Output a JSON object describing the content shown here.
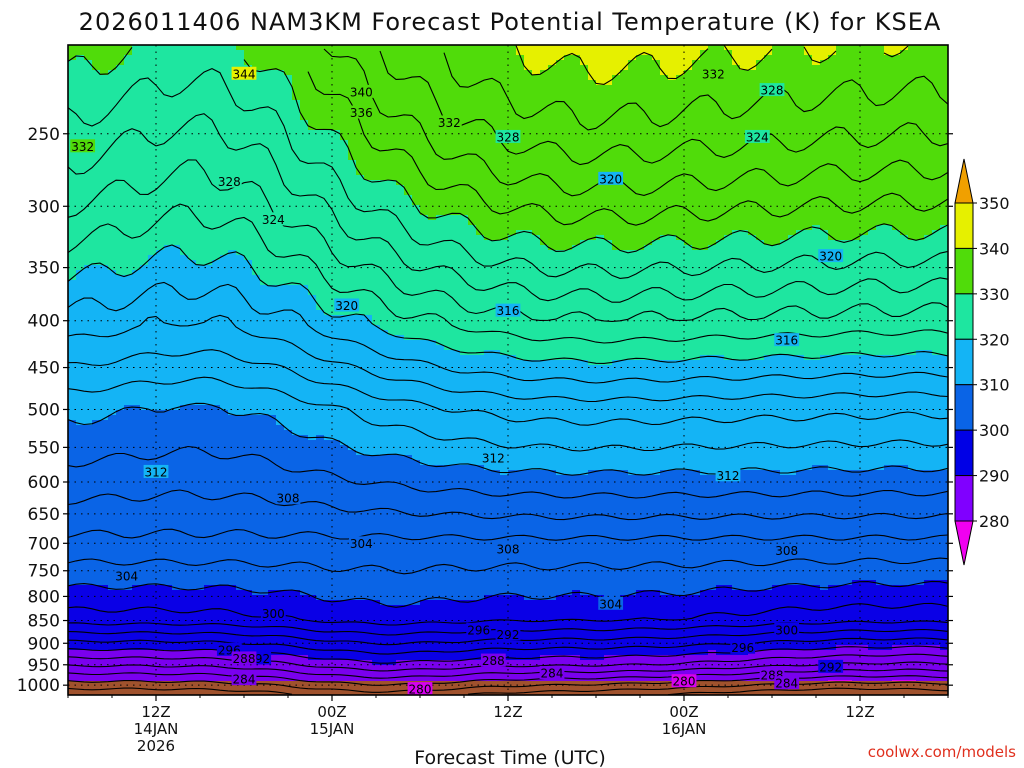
{
  "chart_data": {
    "type": "heatmap",
    "title": "2026011406 NAM3KM Forecast Potential Temperature (K) for KSEA",
    "xlabel": "Forecast Time (UTC)",
    "ylabel": "",
    "credit": "coolwx.com/models",
    "x_range_hours": [
      0,
      60
    ],
    "y_range_hpa": [
      1025,
      200
    ],
    "y_ticks": [
      {
        "value": 250,
        "label": "250"
      },
      {
        "value": 300,
        "label": "300"
      },
      {
        "value": 350,
        "label": "350"
      },
      {
        "value": 400,
        "label": "400"
      },
      {
        "value": 450,
        "label": "450"
      },
      {
        "value": 500,
        "label": "500"
      },
      {
        "value": 550,
        "label": "550"
      },
      {
        "value": 600,
        "label": "600"
      },
      {
        "value": 650,
        "label": "650"
      },
      {
        "value": 700,
        "label": "700"
      },
      {
        "value": 750,
        "label": "750"
      },
      {
        "value": 800,
        "label": "800"
      },
      {
        "value": 850,
        "label": "850"
      },
      {
        "value": 900,
        "label": "900"
      },
      {
        "value": 950,
        "label": "950"
      },
      {
        "value": 1000,
        "label": "1000"
      }
    ],
    "x_ticks": [
      {
        "hour": 6,
        "lines": [
          "12Z",
          "14JAN",
          "2026"
        ]
      },
      {
        "hour": 18,
        "lines": [
          "00Z",
          "15JAN"
        ]
      },
      {
        "hour": 30,
        "lines": [
          "12Z"
        ]
      },
      {
        "hour": 42,
        "lines": [
          "00Z",
          "16JAN"
        ]
      },
      {
        "hour": 54,
        "lines": [
          "12Z"
        ]
      }
    ],
    "colorbar": {
      "levels": [
        280,
        290,
        300,
        310,
        320,
        330,
        340,
        350
      ],
      "labels": [
        "280",
        "290",
        "300",
        "310",
        "320",
        "330",
        "340",
        "350"
      ],
      "colors": [
        "#e000ff",
        "#8b00ff",
        "#5a00f0",
        "#0000e6",
        "#0060e6",
        "#1ea0f0",
        "#1ee6a0",
        "#5ae600",
        "#32c80a",
        "#e6f000",
        "#f0a000"
      ]
    },
    "fill_colors": [
      {
        "min": 270,
        "max": 280,
        "color": "#d600f0"
      },
      {
        "min": 280,
        "max": 290,
        "color": "#7a00ee"
      },
      {
        "min": 290,
        "max": 300,
        "color": "#0a00e6"
      },
      {
        "min": 300,
        "max": 310,
        "color": "#0a64e6"
      },
      {
        "min": 310,
        "max": 320,
        "color": "#14b4f5"
      },
      {
        "min": 320,
        "max": 330,
        "color": "#1ee6a0"
      },
      {
        "min": 330,
        "max": 340,
        "color": "#50dc0a"
      },
      {
        "min": 340,
        "max": 350,
        "color": "#e6f000"
      }
    ],
    "ground_color": "#a0522d",
    "contour_interval": 2,
    "contour_labels": [
      {
        "value": 344,
        "hour": 12,
        "p": 215
      },
      {
        "value": 340,
        "hour": 20,
        "p": 225
      },
      {
        "value": 336,
        "hour": 20,
        "p": 237
      },
      {
        "value": 332,
        "hour": 26,
        "p": 243
      },
      {
        "value": 332,
        "hour": 1,
        "p": 258
      },
      {
        "value": 332,
        "hour": 44,
        "p": 215
      },
      {
        "value": 328,
        "hour": 48,
        "p": 224
      },
      {
        "value": 328,
        "hour": 30,
        "p": 252
      },
      {
        "value": 328,
        "hour": 11,
        "p": 282
      },
      {
        "value": 324,
        "hour": 47,
        "p": 252
      },
      {
        "value": 324,
        "hour": 14,
        "p": 310
      },
      {
        "value": 320,
        "hour": 37,
        "p": 280
      },
      {
        "value": 320,
        "hour": 52,
        "p": 340
      },
      {
        "value": 320,
        "hour": 19,
        "p": 385
      },
      {
        "value": 316,
        "hour": 30,
        "p": 390
      },
      {
        "value": 316,
        "hour": 49,
        "p": 420
      },
      {
        "value": 312,
        "hour": 6,
        "p": 585
      },
      {
        "value": 312,
        "hour": 29,
        "p": 565
      },
      {
        "value": 312,
        "hour": 45,
        "p": 590
      },
      {
        "value": 308,
        "hour": 15,
        "p": 625
      },
      {
        "value": 308,
        "hour": 30,
        "p": 710
      },
      {
        "value": 308,
        "hour": 49,
        "p": 713
      },
      {
        "value": 304,
        "hour": 20,
        "p": 700
      },
      {
        "value": 304,
        "hour": 4,
        "p": 760
      },
      {
        "value": 304,
        "hour": 37,
        "p": 815
      },
      {
        "value": 300,
        "hour": 14,
        "p": 835
      },
      {
        "value": 300,
        "hour": 49,
        "p": 870
      },
      {
        "value": 296,
        "hour": 11,
        "p": 915
      },
      {
        "value": 296,
        "hour": 28,
        "p": 870
      },
      {
        "value": 296,
        "hour": 46,
        "p": 910
      },
      {
        "value": 292,
        "hour": 30,
        "p": 880
      },
      {
        "value": 292,
        "hour": 13,
        "p": 935
      },
      {
        "value": 292,
        "hour": 52,
        "p": 955
      },
      {
        "value": 288,
        "hour": 12,
        "p": 935
      },
      {
        "value": 288,
        "hour": 29,
        "p": 940
      },
      {
        "value": 288,
        "hour": 48,
        "p": 975
      },
      {
        "value": 284,
        "hour": 12,
        "p": 985
      },
      {
        "value": 284,
        "hour": 33,
        "p": 970
      },
      {
        "value": 284,
        "hour": 49,
        "p": 995
      },
      {
        "value": 280,
        "hour": 24,
        "p": 1010
      },
      {
        "value": 280,
        "hour": 42,
        "p": 990
      }
    ]
  }
}
